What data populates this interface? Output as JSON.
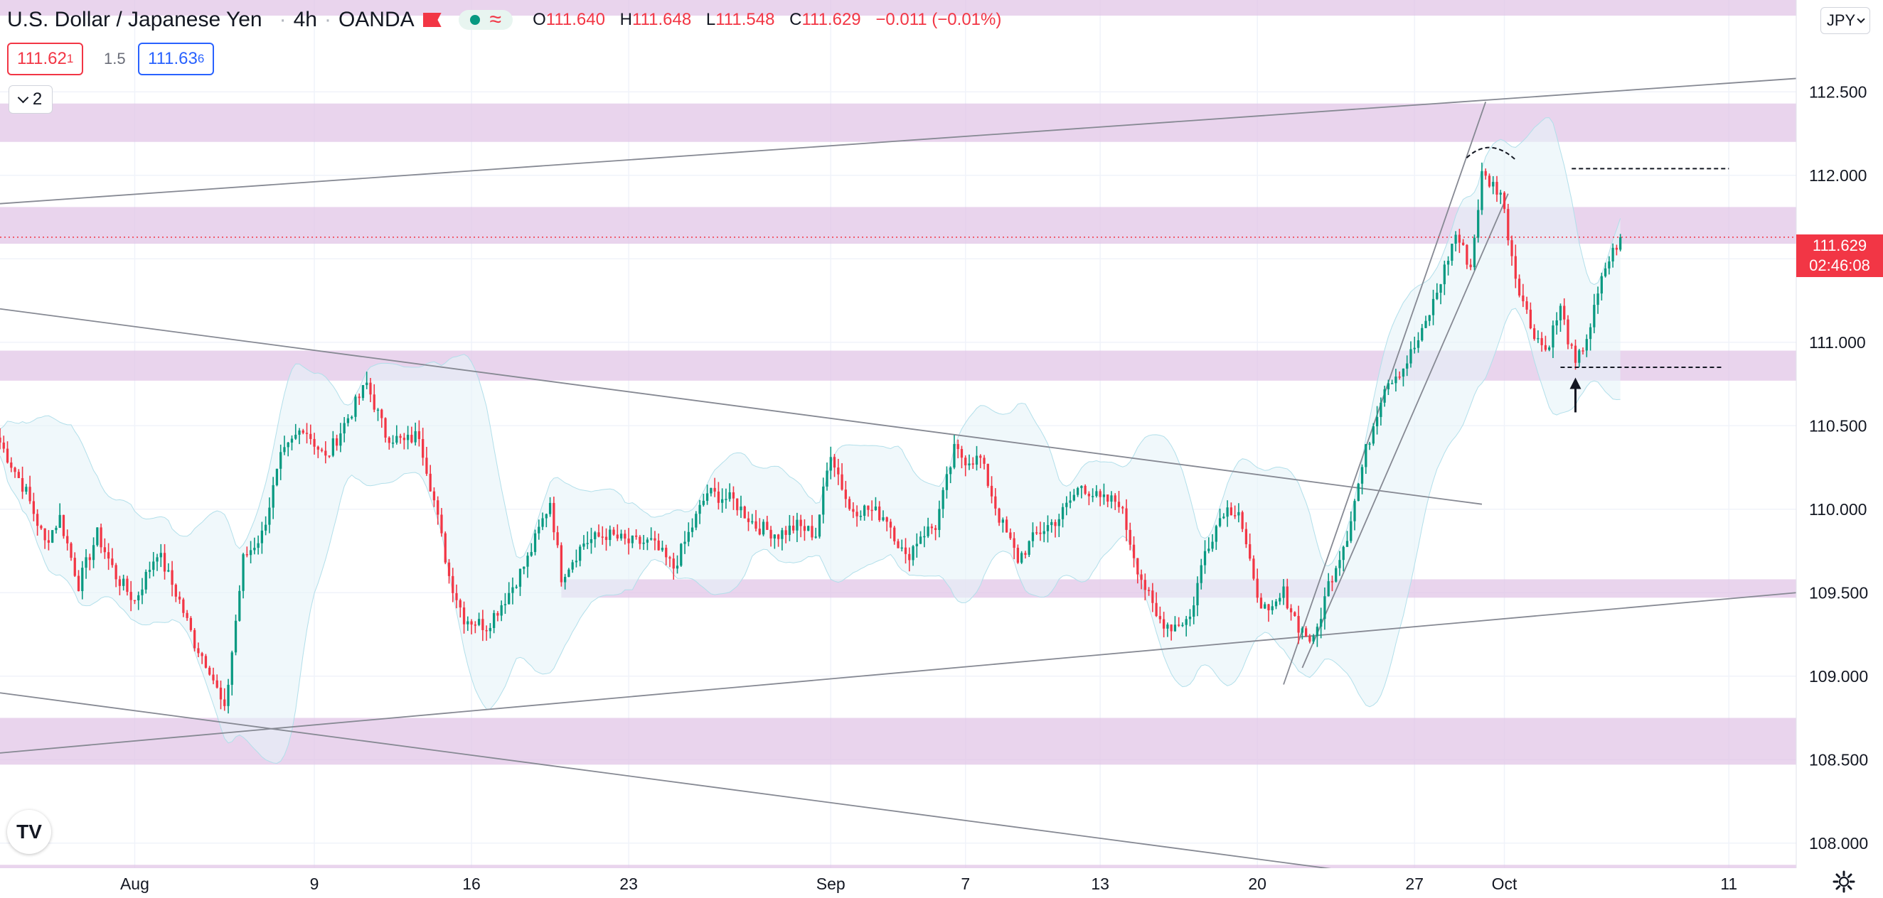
{
  "header": {
    "symbol_title": "U.S. Dollar / Japanese Yen",
    "interval": "4h",
    "exchange": "OANDA",
    "open_key": "O",
    "open_value": "111.640",
    "high_key": "H",
    "high_value": "111.648",
    "low_key": "L",
    "low_value": "111.548",
    "close_key": "C",
    "close_value": "111.629",
    "change_value": "−0.011 (−0.01%)"
  },
  "trade": {
    "sell_main": "111.62",
    "sell_sup": "1",
    "spread": "1.5",
    "buy_main": "111.63",
    "buy_sup": "6"
  },
  "indicators_collapsed_count": "2",
  "currency_button": "JPY",
  "last_price": {
    "price": "111.629",
    "countdown": "02:46:08"
  },
  "colors": {
    "up": "#089981",
    "down": "#f23645",
    "zone": "#e1c4e6",
    "band_fill": "#e6f4f8",
    "trendline": "#868993",
    "label_bg": "#f23645"
  },
  "icons": [
    "flag-icon",
    "market-status-icon",
    "wave-icon",
    "chevron-down-icon",
    "tradingview-logo-icon",
    "gear-icon"
  ],
  "chart_data": {
    "type": "candlestick",
    "y_axis": {
      "ticks": [
        "112.500",
        "112.000",
        "111.500",
        "111.000",
        "110.500",
        "110.000",
        "109.500",
        "109.000",
        "108.500",
        "108.000"
      ],
      "range": [
        107.85,
        113.05
      ]
    },
    "x_axis": {
      "ticks": [
        "Aug",
        "9",
        "16",
        "23",
        "Sep",
        "7",
        "13",
        "20",
        "27",
        "Oct",
        "11"
      ]
    },
    "zones": [
      {
        "low": 112.2,
        "high": 112.43
      },
      {
        "low": 111.59,
        "high": 111.81
      },
      {
        "low": 110.77,
        "high": 110.95
      },
      {
        "low": 109.47,
        "high": 109.58,
        "from": "2021-08-20"
      },
      {
        "low": 108.47,
        "high": 108.75
      },
      {
        "low": 107.77,
        "high": 107.87
      }
    ],
    "trendlines": [
      {
        "from": [
          "2021-07-26 00:00",
          111.2
        ],
        "to": [
          "2021-09-30 00:00",
          110.03
        ]
      },
      {
        "from": [
          "2021-07-26 00:00",
          108.9
        ],
        "to": [
          "2021-09-27 00:00",
          107.78
        ]
      },
      {
        "from": [
          "2021-07-26 00:00",
          108.54
        ],
        "to": [
          "2021-10-14 00:00",
          109.5
        ]
      },
      {
        "from": [
          "2021-07-26 00:00",
          111.83
        ],
        "to": [
          "2021-10-14 00:00",
          112.58
        ]
      },
      {
        "from": [
          "2021-09-21 04:00",
          108.95
        ],
        "to": [
          "2021-09-30 04:00",
          112.44
        ]
      },
      {
        "from": [
          "2021-09-22 00:00",
          109.05
        ],
        "to": [
          "2021-10-01 04:00",
          111.89
        ]
      }
    ],
    "dashed_levels": [
      {
        "price": 112.04,
        "from": "2021-10-04 00:00",
        "to": "2021-10-11 00:00"
      },
      {
        "price": 110.85,
        "from": "2021-10-03 12:00",
        "to": "2021-10-10 16:00"
      }
    ],
    "last_price_line": 111.629,
    "candle_anchors": [
      [
        "2021-07-26 00:00",
        110.4
      ],
      [
        "2021-07-27 04:00",
        110.1
      ],
      [
        "2021-07-28 00:00",
        109.8
      ],
      [
        "2021-07-28 16:00",
        109.95
      ],
      [
        "2021-07-29 12:00",
        109.55
      ],
      [
        "2021-07-30 08:00",
        109.85
      ],
      [
        "2021-07-31 04:00",
        109.6
      ],
      [
        "2021-08-01 00:00",
        109.45
      ],
      [
        "2021-08-02 00:00",
        109.75
      ],
      [
        "2021-08-03 00:00",
        109.45
      ],
      [
        "2021-08-03 16:00",
        109.2
      ],
      [
        "2021-08-04 08:00",
        109.05
      ],
      [
        "2021-08-05 00:00",
        108.78
      ],
      [
        "2021-08-05 20:00",
        109.7
      ],
      [
        "2021-08-06 16:00",
        109.85
      ],
      [
        "2021-08-07 12:00",
        110.3
      ],
      [
        "2021-08-08 12:00",
        110.5
      ],
      [
        "2021-08-09 12:00",
        110.3
      ],
      [
        "2021-08-10 12:00",
        110.55
      ],
      [
        "2021-08-11 08:00",
        110.75
      ],
      [
        "2021-08-12 04:00",
        110.45
      ],
      [
        "2021-08-13 00:00",
        110.4
      ],
      [
        "2021-08-13 16:00",
        110.45
      ],
      [
        "2021-08-14 08:00",
        110.05
      ],
      [
        "2021-08-15 00:00",
        109.6
      ],
      [
        "2021-08-15 16:00",
        109.35
      ],
      [
        "2021-08-16 16:00",
        109.3
      ],
      [
        "2021-08-17 16:00",
        109.5
      ],
      [
        "2021-08-18 12:00",
        109.7
      ],
      [
        "2021-08-19 12:00",
        110.05
      ],
      [
        "2021-08-20 00:00",
        109.6
      ],
      [
        "2021-08-21 00:00",
        109.8
      ],
      [
        "2021-08-22 00:00",
        109.85
      ],
      [
        "2021-08-23 00:00",
        109.8
      ],
      [
        "2021-08-24 00:00",
        109.8
      ],
      [
        "2021-08-25 00:00",
        109.65
      ],
      [
        "2021-08-25 16:00",
        109.85
      ],
      [
        "2021-08-26 12:00",
        110.1
      ],
      [
        "2021-08-27 16:00",
        110.05
      ],
      [
        "2021-08-28 16:00",
        109.9
      ],
      [
        "2021-08-29 16:00",
        109.85
      ],
      [
        "2021-08-30 12:00",
        109.9
      ],
      [
        "2021-08-31 08:00",
        109.85
      ],
      [
        "2021-09-01 00:00",
        110.35
      ],
      [
        "2021-09-01 20:00",
        110.0
      ],
      [
        "2021-09-02 16:00",
        110.0
      ],
      [
        "2021-09-03 12:00",
        109.95
      ],
      [
        "2021-09-04 08:00",
        109.7
      ],
      [
        "2021-09-05 00:00",
        109.85
      ],
      [
        "2021-09-05 16:00",
        109.9
      ],
      [
        "2021-09-06 12:00",
        110.35
      ],
      [
        "2021-09-07 00:00",
        110.3
      ],
      [
        "2021-09-07 16:00",
        110.3
      ],
      [
        "2021-09-08 12:00",
        109.95
      ],
      [
        "2021-09-09 08:00",
        109.7
      ],
      [
        "2021-09-10 04:00",
        109.85
      ],
      [
        "2021-09-11 04:00",
        109.95
      ],
      [
        "2021-09-12 04:00",
        110.15
      ],
      [
        "2021-09-13 00:00",
        110.05
      ],
      [
        "2021-09-13 20:00",
        110.05
      ],
      [
        "2021-09-14 16:00",
        109.65
      ],
      [
        "2021-09-15 12:00",
        109.35
      ],
      [
        "2021-09-16 04:00",
        109.3
      ],
      [
        "2021-09-17 00:00",
        109.35
      ],
      [
        "2021-09-17 16:00",
        109.75
      ],
      [
        "2021-09-18 12:00",
        110.0
      ],
      [
        "2021-09-19 04:00",
        110.0
      ],
      [
        "2021-09-19 20:00",
        109.55
      ],
      [
        "2021-09-20 12:00",
        109.35
      ],
      [
        "2021-09-21 04:00",
        109.5
      ],
      [
        "2021-09-21 20:00",
        109.3
      ],
      [
        "2021-09-22 12:00",
        109.2
      ],
      [
        "2021-09-23 04:00",
        109.55
      ],
      [
        "2021-09-24 00:00",
        109.85
      ],
      [
        "2021-09-24 20:00",
        110.35
      ],
      [
        "2021-09-25 16:00",
        110.75
      ],
      [
        "2021-09-26 12:00",
        110.85
      ],
      [
        "2021-09-27 08:00",
        111.05
      ],
      [
        "2021-09-28 00:00",
        111.3
      ],
      [
        "2021-09-28 20:00",
        111.65
      ],
      [
        "2021-09-29 12:00",
        111.45
      ],
      [
        "2021-09-30 00:00",
        112.0
      ],
      [
        "2021-09-30 20:00",
        111.9
      ],
      [
        "2021-10-01 12:00",
        111.4
      ],
      [
        "2021-10-02 04:00",
        111.1
      ],
      [
        "2021-10-02 20:00",
        110.95
      ],
      [
        "2021-10-03 12:00",
        111.2
      ],
      [
        "2021-10-04 04:00",
        110.85
      ],
      [
        "2021-10-04 20:00",
        111.1
      ],
      [
        "2021-10-05 12:00",
        111.45
      ],
      [
        "2021-10-06 04:00",
        111.629
      ]
    ]
  }
}
